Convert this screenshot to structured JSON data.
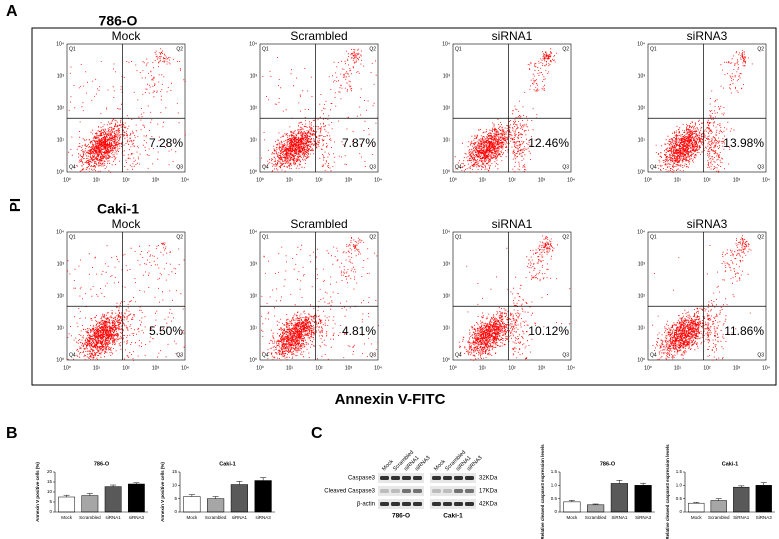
{
  "panels": [
    "A",
    "B",
    "C"
  ],
  "flow": {
    "rows": [
      {
        "label": "786-O",
        "plots": [
          {
            "title": "Mock",
            "percent": "7.28%"
          },
          {
            "title": "Scrambled",
            "percent": "7.87%"
          },
          {
            "title": "siRNA1",
            "percent": "12.46%"
          },
          {
            "title": "siRNA3",
            "percent": "13.98%"
          }
        ]
      },
      {
        "label": "Caki-1",
        "plots": [
          {
            "title": "Mock",
            "percent": "5.50%"
          },
          {
            "title": "Scrambled",
            "percent": "4.81%"
          },
          {
            "title": "siRNA1",
            "percent": "10.12%"
          },
          {
            "title": "siRNA3",
            "percent": "11.86%"
          }
        ]
      }
    ],
    "quadrants": [
      "Q1",
      "Q2",
      "Q4",
      "Q3"
    ],
    "ticks": [
      "10⁰",
      "10¹",
      "10²",
      "10³",
      "10⁴"
    ],
    "ylabel": "PI",
    "xlabel": "Annexin V-FITC"
  },
  "blot": {
    "rows": [
      "Caspase3",
      "Cleaved Caspase3",
      "β-actin"
    ],
    "sizes": [
      "32KDa",
      "17KDa",
      "42KDa"
    ],
    "lanes": [
      "Mock",
      "Scrambled",
      "siRNA1",
      "siRNA3"
    ],
    "groups": [
      "786-O",
      "Caki-1"
    ]
  },
  "chart_data": [
    {
      "type": "bar",
      "title": "786-O",
      "ylabel": "Annexin V positive cells (%)",
      "categories": [
        "Mock",
        "Scrambled",
        "siRNA1",
        "siRNA3"
      ],
      "values": [
        7.5,
        8.2,
        12.7,
        14
      ],
      "errors": [
        0.9,
        1.1,
        0.8,
        0.6
      ],
      "colors": [
        "#ffffff",
        "#a6a6a6",
        "#595959",
        "#000000"
      ],
      "ylim": [
        0,
        20
      ],
      "yticks": [
        0,
        5,
        10,
        15,
        20
      ]
    },
    {
      "type": "bar",
      "title": "Caki-1",
      "ylabel": "Annexin V positive cells (%)",
      "categories": [
        "Mock",
        "Scrambled",
        "siRNA1",
        "siRNA3"
      ],
      "values": [
        5.8,
        5,
        10.3,
        11.8
      ],
      "errors": [
        0.7,
        0.8,
        1.2,
        1.1
      ],
      "colors": [
        "#ffffff",
        "#a6a6a6",
        "#595959",
        "#000000"
      ],
      "ylim": [
        0,
        15
      ],
      "yticks": [
        0,
        5,
        10,
        15
      ]
    },
    {
      "type": "bar",
      "title": "786-O",
      "ylabel": "Relative cleaved caspase3 expression levels",
      "categories": [
        "Mock",
        "Scrambled",
        "SiRNA1",
        "SiRNA3"
      ],
      "values": [
        0.38,
        0.27,
        1.07,
        1
      ],
      "errors": [
        0.06,
        0.03,
        0.12,
        0.08
      ],
      "colors": [
        "#ffffff",
        "#a6a6a6",
        "#595959",
        "#000000"
      ],
      "ylim": [
        0,
        1.5
      ],
      "yticks": [
        0,
        {
          "value": 0.5,
          "label": "0.5"
        },
        {
          "value": 1,
          "label": "1.0"
        },
        {
          "value": 1.5,
          "label": "1.5"
        }
      ]
    },
    {
      "type": "bar",
      "title": "Caki-1",
      "ylabel": "Relative cleaved caspase3 expression levels",
      "categories": [
        "Mock",
        "Scrambled",
        "SiRNA1",
        "SiRNA3"
      ],
      "values": [
        0.33,
        0.43,
        0.93,
        1
      ],
      "errors": [
        0.03,
        0.07,
        0.05,
        0.1
      ],
      "colors": [
        "#ffffff",
        "#a6a6a6",
        "#595959",
        "#000000"
      ],
      "ylim": [
        0,
        1.5
      ],
      "yticks": [
        0,
        {
          "value": 0.5,
          "label": "0.5"
        },
        {
          "value": 1,
          "label": "1.0"
        },
        {
          "value": 1.5,
          "label": "1.5"
        }
      ]
    }
  ]
}
